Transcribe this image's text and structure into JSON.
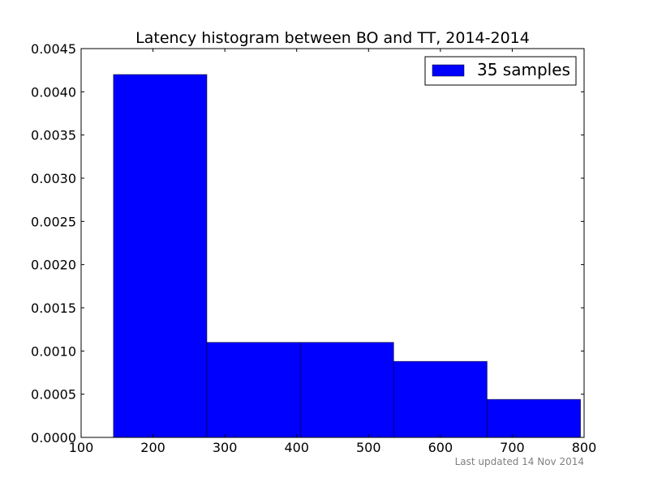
{
  "chart_data": {
    "type": "bar",
    "title": "Latency histogram between BO and TT, 2014-2014",
    "xlabel": "",
    "ylabel": "",
    "xlim": [
      100,
      800
    ],
    "ylim": [
      0,
      0.0045
    ],
    "x_ticks": [
      "100",
      "200",
      "300",
      "400",
      "500",
      "600",
      "700",
      "800"
    ],
    "y_ticks": [
      "0.0000",
      "0.0005",
      "0.0010",
      "0.0015",
      "0.0020",
      "0.0025",
      "0.0030",
      "0.0035",
      "0.0040",
      "0.0045"
    ],
    "bins": [
      {
        "x0": 145,
        "x1": 275,
        "value": 0.0042
      },
      {
        "x0": 275,
        "x1": 405,
        "value": 0.0011
      },
      {
        "x0": 405,
        "x1": 535,
        "value": 0.0011
      },
      {
        "x0": 535,
        "x1": 665,
        "value": 0.00088
      },
      {
        "x0": 665,
        "x1": 795,
        "value": 0.00044
      }
    ],
    "series": [
      {
        "name": "35 samples",
        "color": "#0000ff"
      }
    ],
    "legend": "top-right",
    "grid": false
  },
  "footer": {
    "text": "Last updated 14 Nov 2014"
  }
}
